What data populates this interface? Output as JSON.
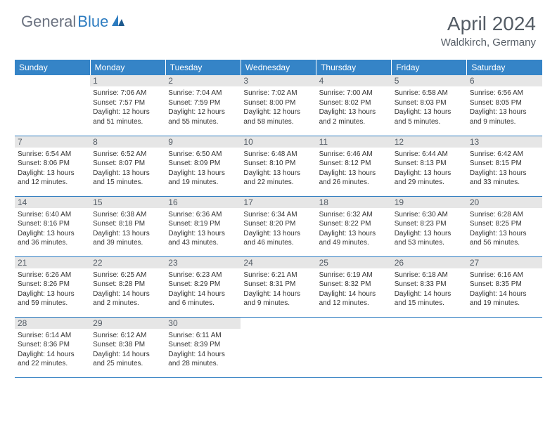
{
  "brand": {
    "general": "General",
    "blue": "Blue"
  },
  "colors": {
    "header_bg": "#3584c7",
    "header_text": "#ffffff",
    "cell_border": "#2d7cc0",
    "daynum_bg": "#e6e6e6",
    "text": "#333333",
    "muted": "#555d66",
    "brand_blue": "#2d7cc0",
    "brand_gray": "#6b7280"
  },
  "title": "April 2024",
  "location": "Waldkirch, Germany",
  "weekdays": [
    "Sunday",
    "Monday",
    "Tuesday",
    "Wednesday",
    "Thursday",
    "Friday",
    "Saturday"
  ],
  "weeks": [
    [
      {
        "n": "",
        "sr": "",
        "ss": "",
        "dl": ""
      },
      {
        "n": "1",
        "sr": "Sunrise: 7:06 AM",
        "ss": "Sunset: 7:57 PM",
        "dl": "Daylight: 12 hours and 51 minutes."
      },
      {
        "n": "2",
        "sr": "Sunrise: 7:04 AM",
        "ss": "Sunset: 7:59 PM",
        "dl": "Daylight: 12 hours and 55 minutes."
      },
      {
        "n": "3",
        "sr": "Sunrise: 7:02 AM",
        "ss": "Sunset: 8:00 PM",
        "dl": "Daylight: 12 hours and 58 minutes."
      },
      {
        "n": "4",
        "sr": "Sunrise: 7:00 AM",
        "ss": "Sunset: 8:02 PM",
        "dl": "Daylight: 13 hours and 2 minutes."
      },
      {
        "n": "5",
        "sr": "Sunrise: 6:58 AM",
        "ss": "Sunset: 8:03 PM",
        "dl": "Daylight: 13 hours and 5 minutes."
      },
      {
        "n": "6",
        "sr": "Sunrise: 6:56 AM",
        "ss": "Sunset: 8:05 PM",
        "dl": "Daylight: 13 hours and 9 minutes."
      }
    ],
    [
      {
        "n": "7",
        "sr": "Sunrise: 6:54 AM",
        "ss": "Sunset: 8:06 PM",
        "dl": "Daylight: 13 hours and 12 minutes."
      },
      {
        "n": "8",
        "sr": "Sunrise: 6:52 AM",
        "ss": "Sunset: 8:07 PM",
        "dl": "Daylight: 13 hours and 15 minutes."
      },
      {
        "n": "9",
        "sr": "Sunrise: 6:50 AM",
        "ss": "Sunset: 8:09 PM",
        "dl": "Daylight: 13 hours and 19 minutes."
      },
      {
        "n": "10",
        "sr": "Sunrise: 6:48 AM",
        "ss": "Sunset: 8:10 PM",
        "dl": "Daylight: 13 hours and 22 minutes."
      },
      {
        "n": "11",
        "sr": "Sunrise: 6:46 AM",
        "ss": "Sunset: 8:12 PM",
        "dl": "Daylight: 13 hours and 26 minutes."
      },
      {
        "n": "12",
        "sr": "Sunrise: 6:44 AM",
        "ss": "Sunset: 8:13 PM",
        "dl": "Daylight: 13 hours and 29 minutes."
      },
      {
        "n": "13",
        "sr": "Sunrise: 6:42 AM",
        "ss": "Sunset: 8:15 PM",
        "dl": "Daylight: 13 hours and 33 minutes."
      }
    ],
    [
      {
        "n": "14",
        "sr": "Sunrise: 6:40 AM",
        "ss": "Sunset: 8:16 PM",
        "dl": "Daylight: 13 hours and 36 minutes."
      },
      {
        "n": "15",
        "sr": "Sunrise: 6:38 AM",
        "ss": "Sunset: 8:18 PM",
        "dl": "Daylight: 13 hours and 39 minutes."
      },
      {
        "n": "16",
        "sr": "Sunrise: 6:36 AM",
        "ss": "Sunset: 8:19 PM",
        "dl": "Daylight: 13 hours and 43 minutes."
      },
      {
        "n": "17",
        "sr": "Sunrise: 6:34 AM",
        "ss": "Sunset: 8:20 PM",
        "dl": "Daylight: 13 hours and 46 minutes."
      },
      {
        "n": "18",
        "sr": "Sunrise: 6:32 AM",
        "ss": "Sunset: 8:22 PM",
        "dl": "Daylight: 13 hours and 49 minutes."
      },
      {
        "n": "19",
        "sr": "Sunrise: 6:30 AM",
        "ss": "Sunset: 8:23 PM",
        "dl": "Daylight: 13 hours and 53 minutes."
      },
      {
        "n": "20",
        "sr": "Sunrise: 6:28 AM",
        "ss": "Sunset: 8:25 PM",
        "dl": "Daylight: 13 hours and 56 minutes."
      }
    ],
    [
      {
        "n": "21",
        "sr": "Sunrise: 6:26 AM",
        "ss": "Sunset: 8:26 PM",
        "dl": "Daylight: 13 hours and 59 minutes."
      },
      {
        "n": "22",
        "sr": "Sunrise: 6:25 AM",
        "ss": "Sunset: 8:28 PM",
        "dl": "Daylight: 14 hours and 2 minutes."
      },
      {
        "n": "23",
        "sr": "Sunrise: 6:23 AM",
        "ss": "Sunset: 8:29 PM",
        "dl": "Daylight: 14 hours and 6 minutes."
      },
      {
        "n": "24",
        "sr": "Sunrise: 6:21 AM",
        "ss": "Sunset: 8:31 PM",
        "dl": "Daylight: 14 hours and 9 minutes."
      },
      {
        "n": "25",
        "sr": "Sunrise: 6:19 AM",
        "ss": "Sunset: 8:32 PM",
        "dl": "Daylight: 14 hours and 12 minutes."
      },
      {
        "n": "26",
        "sr": "Sunrise: 6:18 AM",
        "ss": "Sunset: 8:33 PM",
        "dl": "Daylight: 14 hours and 15 minutes."
      },
      {
        "n": "27",
        "sr": "Sunrise: 6:16 AM",
        "ss": "Sunset: 8:35 PM",
        "dl": "Daylight: 14 hours and 19 minutes."
      }
    ],
    [
      {
        "n": "28",
        "sr": "Sunrise: 6:14 AM",
        "ss": "Sunset: 8:36 PM",
        "dl": "Daylight: 14 hours and 22 minutes."
      },
      {
        "n": "29",
        "sr": "Sunrise: 6:12 AM",
        "ss": "Sunset: 8:38 PM",
        "dl": "Daylight: 14 hours and 25 minutes."
      },
      {
        "n": "30",
        "sr": "Sunrise: 6:11 AM",
        "ss": "Sunset: 8:39 PM",
        "dl": "Daylight: 14 hours and 28 minutes."
      },
      {
        "n": "",
        "sr": "",
        "ss": "",
        "dl": ""
      },
      {
        "n": "",
        "sr": "",
        "ss": "",
        "dl": ""
      },
      {
        "n": "",
        "sr": "",
        "ss": "",
        "dl": ""
      },
      {
        "n": "",
        "sr": "",
        "ss": "",
        "dl": ""
      }
    ]
  ]
}
